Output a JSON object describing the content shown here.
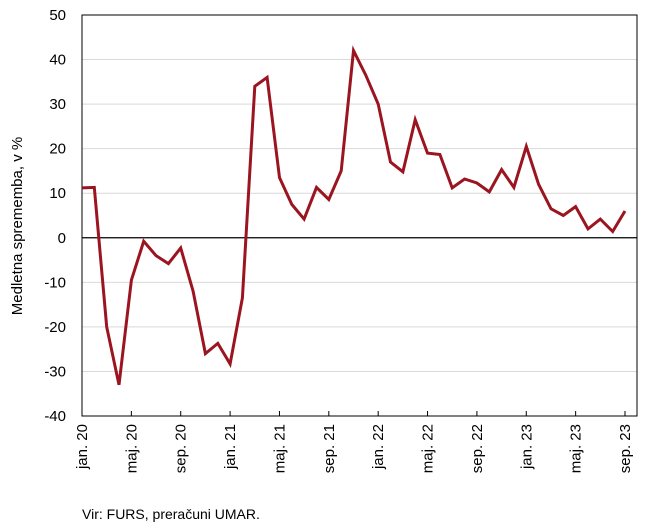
{
  "source": "Vir: FURS, preračuni UMAR.",
  "colors": {
    "line": "#9b1520",
    "grid": "#d9d9d9",
    "zero": "#000000"
  },
  "chart_data": {
    "type": "line",
    "ylabel": "Medletna sprememba, v %",
    "ylim": [
      -40,
      50
    ],
    "y_ticks": [
      50,
      40,
      30,
      20,
      10,
      0,
      -10,
      -20,
      -30,
      -40
    ],
    "grid": true,
    "x": [
      "jan. 20",
      "feb. 20",
      "mar. 20",
      "apr. 20",
      "maj. 20",
      "jun. 20",
      "jul. 20",
      "avg. 20",
      "sep. 20",
      "okt. 20",
      "nov. 20",
      "dec. 20",
      "jan. 21",
      "feb. 21",
      "mar. 21",
      "apr. 21",
      "maj. 21",
      "jun. 21",
      "jul. 21",
      "avg. 21",
      "sep. 21",
      "okt. 21",
      "nov. 21",
      "dec. 21",
      "jan. 22",
      "feb. 22",
      "mar. 22",
      "apr. 22",
      "maj. 22",
      "jun. 22",
      "jul. 22",
      "avg. 22",
      "sep. 22",
      "okt. 22",
      "nov. 22",
      "dec. 22",
      "jan. 23",
      "feb. 23",
      "mar. 23",
      "apr. 23",
      "maj. 23",
      "jun. 23",
      "jul. 23",
      "avg. 23",
      "sep. 23"
    ],
    "x_tick_labels": [
      "jan. 20",
      "maj. 20",
      "sep. 20",
      "jan. 21",
      "maj. 21",
      "sep. 21",
      "jan. 22",
      "maj. 22",
      "sep. 22",
      "jan. 23",
      "maj. 23",
      "sep. 23"
    ],
    "series": [
      {
        "values": [
          11.2,
          11.3,
          -20,
          -33,
          -9.5,
          -0.8,
          -4,
          -5.8,
          -2.3,
          -12,
          -26,
          -23.7,
          -28.3,
          -13.5,
          34,
          36,
          13.5,
          7.5,
          4.2,
          11.3,
          8.6,
          15,
          42,
          36.5,
          30,
          17,
          14.8,
          26.5,
          19,
          18.7,
          11.2,
          13.2,
          12.3,
          10.3,
          15.3,
          11.3,
          20.5,
          12,
          6.5,
          5,
          7,
          2,
          4.2,
          1.4,
          6
        ]
      }
    ]
  }
}
